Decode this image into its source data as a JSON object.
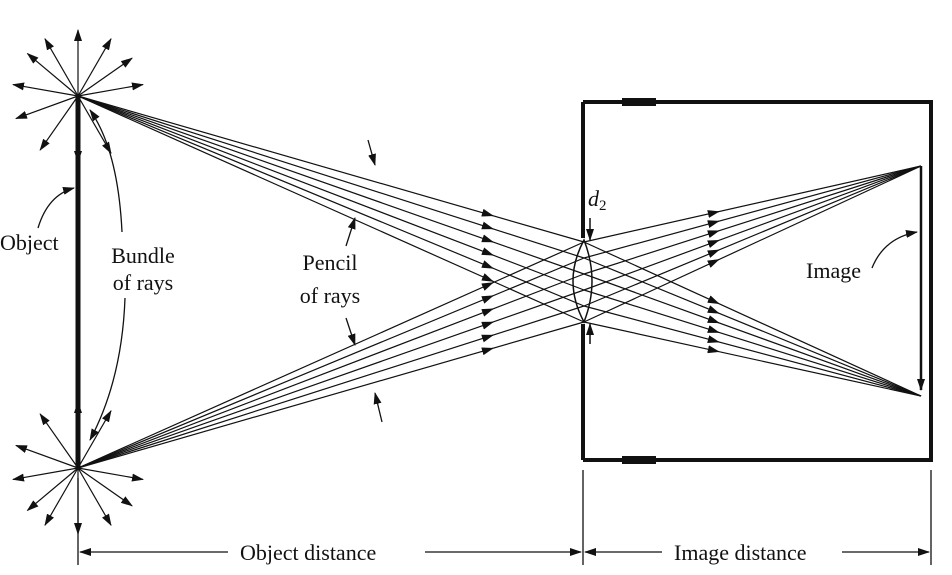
{
  "labels": {
    "object": "Object",
    "bundle_line1": "Bundle",
    "bundle_line2": "of rays",
    "pencil_line1": "Pencil",
    "pencil_line2": "of rays",
    "aperture_symbol": "d",
    "aperture_subscript": "2",
    "image": "Image",
    "object_distance": "Object distance",
    "image_distance": "Image distance"
  },
  "colors": {
    "ink": "#111111",
    "background": "#ffffff"
  }
}
